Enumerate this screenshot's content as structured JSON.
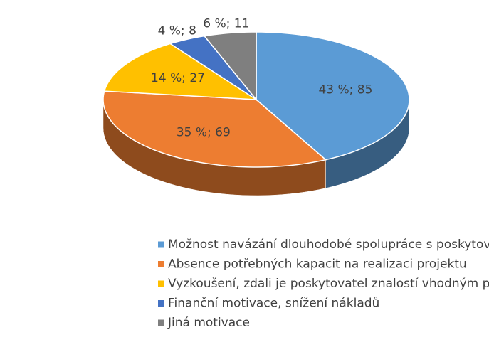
{
  "chart_data": {
    "type": "pie",
    "categories": [
      "Možnost navázání dlouhodobé spolupráce s poskytovatelem znalostí",
      "Absence potřebných kapacit na realizaci projektu",
      "Vyzkoušení, zdali je poskytovatel znalostí vhodným partnerem",
      "Finanční motivace, snížení nákladů",
      "Jiná motivace"
    ],
    "values": [
      85,
      69,
      27,
      8,
      11
    ],
    "value_labels": [
      "43 %; 85",
      "35 %; 69",
      "14 %; 27",
      "4 %; 8",
      "6 %; 11"
    ],
    "colors": [
      "#5b9bd5",
      "#ed7d31",
      "#ffc000",
      "#4472c4",
      "#7f7f7f"
    ],
    "legend": "bottom"
  }
}
